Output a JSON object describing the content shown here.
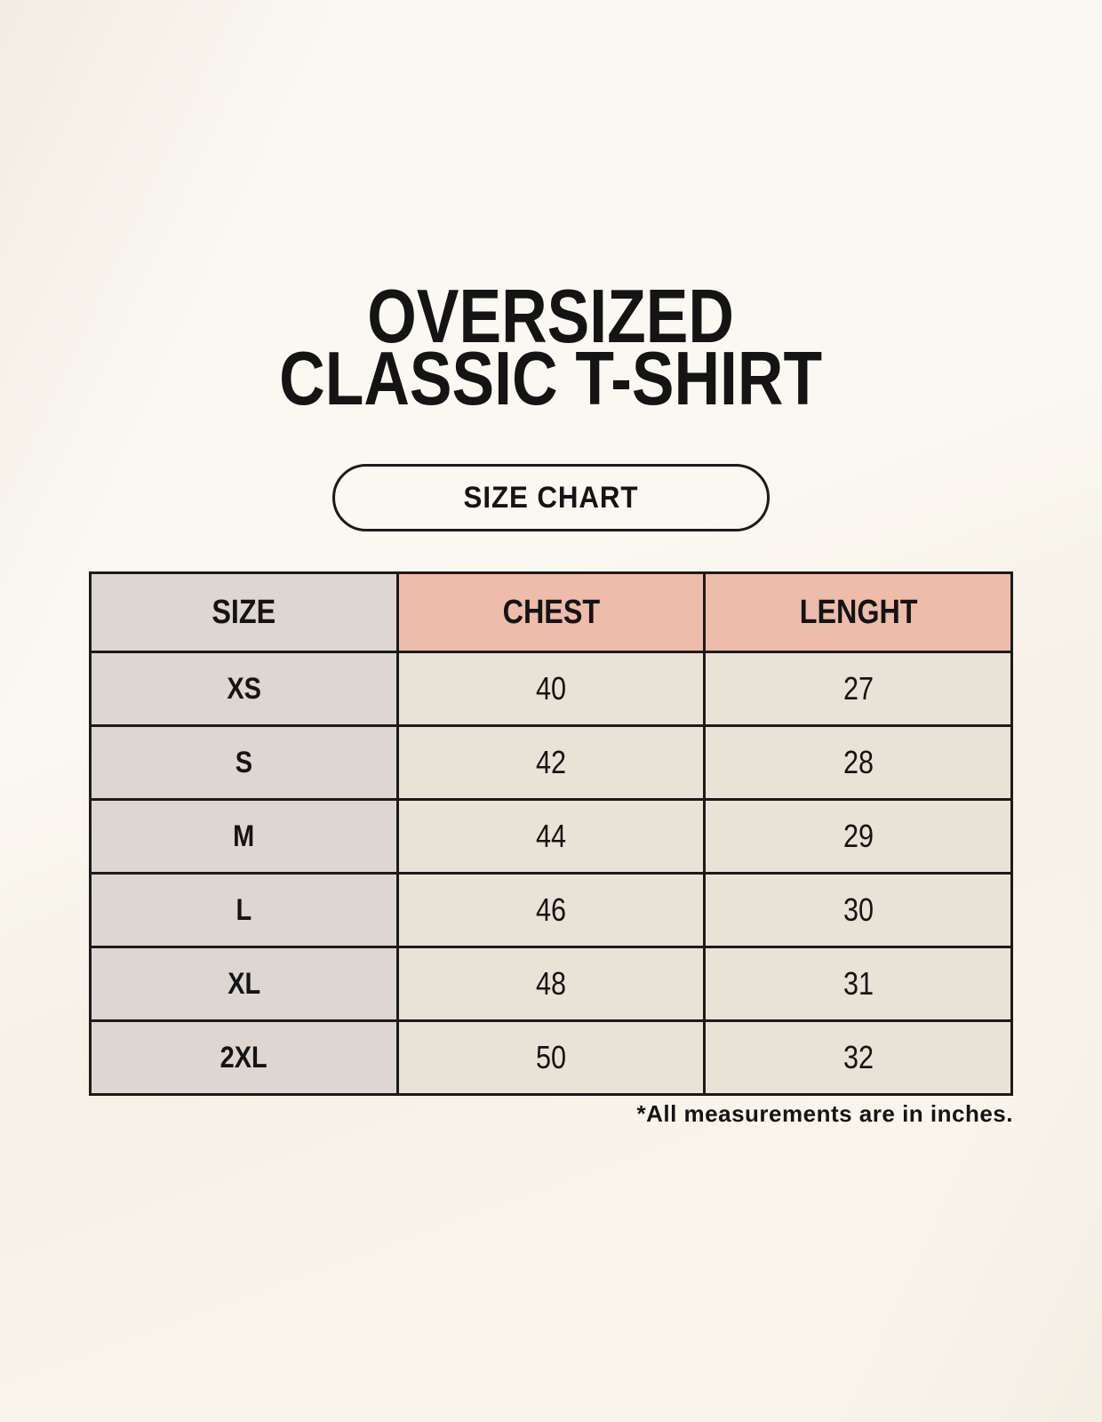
{
  "header": {
    "title_lines": [
      "OVERSIZED",
      "CLASSIC T-SHIRT"
    ],
    "badge_label": "SIZE CHART"
  },
  "chart_data": {
    "type": "table",
    "title": "OVERSIZED CLASSIC T-SHIRT",
    "subtitle": "SIZE CHART",
    "columns": [
      "SIZE",
      "CHEST",
      "LENGHT"
    ],
    "rows": [
      [
        "XS",
        "40",
        "27"
      ],
      [
        "S",
        "42",
        "28"
      ],
      [
        "M",
        "44",
        "29"
      ],
      [
        "L",
        "46",
        "30"
      ],
      [
        "XL",
        "48",
        "31"
      ],
      [
        "2XL",
        "50",
        "32"
      ]
    ],
    "footnote": "*All measurements are in inches."
  },
  "colors": {
    "background": "#f9f5ec",
    "size_column_bg": "#ddd6d1",
    "header_accent_bg": "#eebcab",
    "data_cell_bg": "#e9e2d6",
    "border": "#1b1b1b",
    "text": "#141414"
  }
}
